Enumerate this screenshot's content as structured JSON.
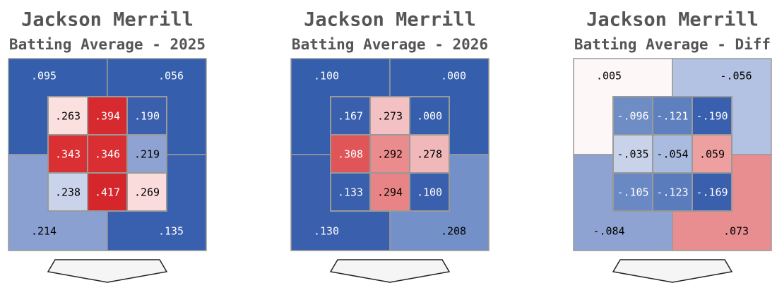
{
  "chart_data": [
    {
      "type": "heatmap",
      "title": "Jackson Merrill",
      "subtitle": "Batting Average - 2025",
      "outer": {
        "values": [
          0.095,
          0.056,
          0.214,
          0.135
        ],
        "value_labels": [
          ".095",
          ".056",
          ".214",
          ".135"
        ],
        "colors": [
          "#355fad",
          "#355fad",
          "#8aa0d0",
          "#3960ae"
        ]
      },
      "inner": {
        "values": [
          0.263,
          0.394,
          0.19,
          0.343,
          0.346,
          0.219,
          0.238,
          0.417,
          0.269
        ],
        "value_labels": [
          ".263",
          ".394",
          ".190",
          ".343",
          ".346",
          ".219",
          ".238",
          ".417",
          ".269"
        ],
        "colors": [
          "#fbe0e0",
          "#d62a2f",
          "#3a5fad",
          "#da2f33",
          "#d92e32",
          "#8ea3d2",
          "#c9d4ea",
          "#d4262b",
          "#fadcdc"
        ]
      }
    },
    {
      "type": "heatmap",
      "title": "Jackson Merrill",
      "subtitle": "Batting Average - 2026",
      "outer": {
        "values": [
          0.1,
          0.0,
          0.13,
          0.208
        ],
        "value_labels": [
          ".100",
          ".000",
          ".130",
          ".208"
        ],
        "colors": [
          "#355fad",
          "#355fad",
          "#3a5fad",
          "#7391c8"
        ]
      },
      "inner": {
        "values": [
          0.167,
          0.273,
          0.0,
          0.308,
          0.292,
          0.278,
          0.133,
          0.294,
          0.1
        ],
        "value_labels": [
          ".167",
          ".273",
          ".000",
          ".308",
          ".292",
          ".278",
          ".133",
          ".294",
          ".100"
        ],
        "colors": [
          "#3a5fad",
          "#f3c1c3",
          "#355fad",
          "#e05658",
          "#ea8b8d",
          "#f1b8ba",
          "#3a5fad",
          "#e98486",
          "#3a5fad"
        ]
      }
    },
    {
      "type": "heatmap",
      "title": "Jackson Merrill",
      "subtitle": "Batting Average - Diff",
      "outer": {
        "values": [
          0.005,
          -0.056,
          -0.084,
          0.073
        ],
        "value_labels": [
          ".005",
          "-.056",
          "-.084",
          ".073"
        ],
        "colors": [
          "#fdf7f7",
          "#b3c2e2",
          "#8ea3d2",
          "#e98e90"
        ]
      },
      "inner": {
        "values": [
          -0.096,
          -0.121,
          -0.19,
          -0.035,
          -0.054,
          0.059,
          -0.105,
          -0.123,
          -0.169
        ],
        "value_labels": [
          "-.096",
          "-.121",
          "-.190",
          "-.035",
          "-.054",
          ".059",
          "-.105",
          "-.123",
          "-.169"
        ],
        "colors": [
          "#6f8dc5",
          "#5f80bf",
          "#3960ae",
          "#c8d3ea",
          "#aabbe0",
          "#ee9fa0",
          "#6a89c4",
          "#5a7cbd",
          "#3a5fad"
        ]
      }
    }
  ]
}
